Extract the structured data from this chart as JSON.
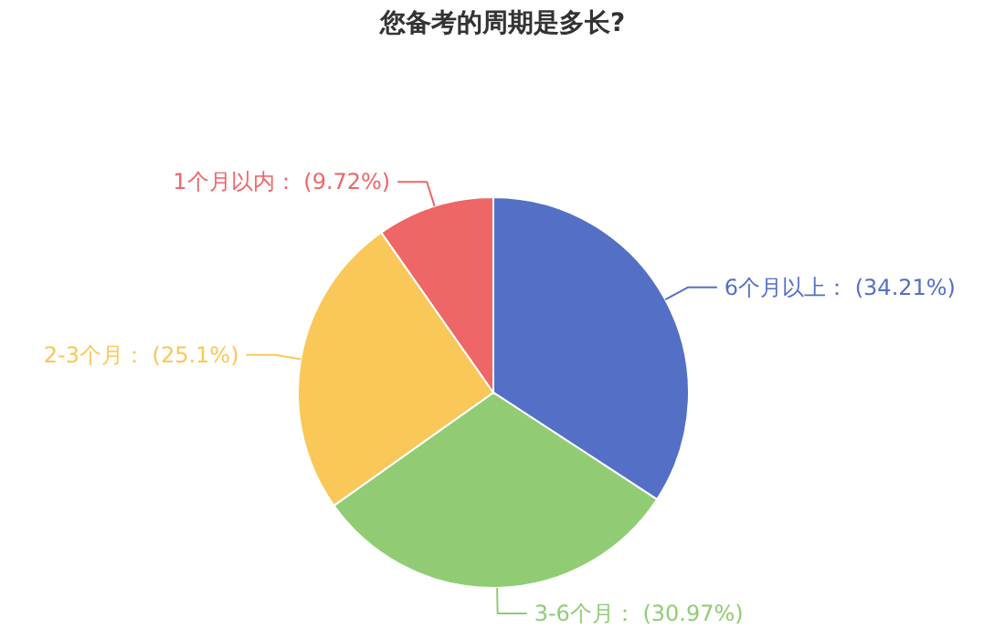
{
  "chart_data": {
    "type": "pie",
    "title": "您备考的周期是多长?",
    "categories": [
      "6个月以上",
      "3-6个月",
      "2-3个月",
      "1个月以内"
    ],
    "values": [
      34.21,
      30.97,
      25.1,
      9.72
    ],
    "colors": [
      "#5470c6",
      "#91cc75",
      "#fac858",
      "#ee6666"
    ],
    "value_labels": [
      "(34.21%)",
      "(30.97%)",
      "(25.1%)",
      "(9.72%)"
    ]
  }
}
